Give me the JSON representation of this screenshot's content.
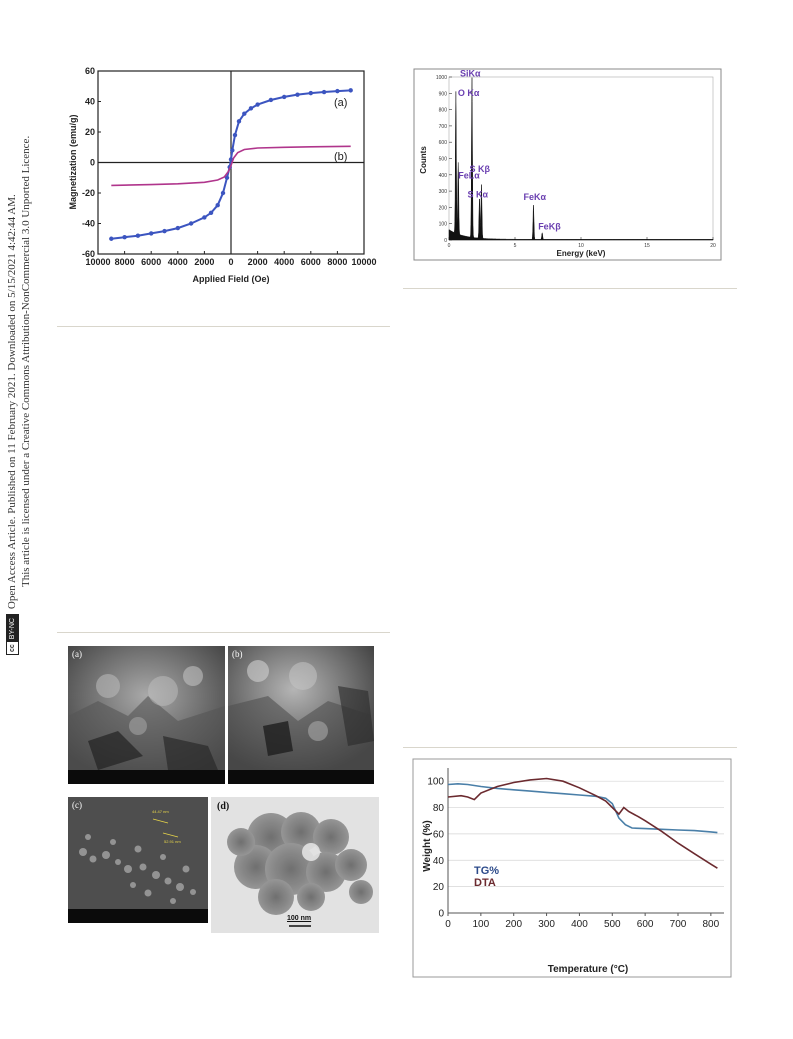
{
  "sidebar": {
    "line1": "Open Access Article. Published on 11 February 2021. Downloaded on 5/15/2021 4:42:44 AM.",
    "line2": "This article is licensed under a Creative Commons Attribution-NonCommercial 3.0 Unported Licence.",
    "cc_badge": "cc",
    "cc_terms": "BY-NC"
  },
  "photos": {
    "a": "(a)",
    "b": "(b)",
    "c": "(c)",
    "d": "(d)",
    "scale_bar": "100 nm",
    "c_annotation_1": "44.47 nm",
    "c_annotation_2": "52.91 nm"
  },
  "colors": {
    "vsm_a": "#3c55c0",
    "vsm_b": "#b0358c",
    "edx_label": "#6a3fb0",
    "tg": "#4a7fa8",
    "dta": "#6b2a2f"
  },
  "chart_data": [
    {
      "type": "line",
      "title": "",
      "xlabel": "Applied Field (Oe)",
      "ylabel": "Magnetization (emu/g)",
      "xlim": [
        -10000,
        10000
      ],
      "ylim": [
        -60,
        60
      ],
      "xticks": [
        -10000,
        -8000,
        -6000,
        -4000,
        -2000,
        0,
        2000,
        4000,
        6000,
        8000,
        10000
      ],
      "xtick_labels": [
        "10000",
        "8000",
        "6000",
        "4000",
        "2000",
        "0",
        "2000",
        "4000",
        "6000",
        "8000",
        "10000"
      ],
      "yticks": [
        -60,
        -40,
        -20,
        0,
        20,
        40,
        60
      ],
      "series": [
        {
          "name": "(a)",
          "x": [
            -9000,
            -8000,
            -7000,
            -6000,
            -5000,
            -4000,
            -3000,
            -2000,
            -1500,
            -1000,
            -600,
            -300,
            -100,
            0,
            100,
            300,
            600,
            1000,
            1500,
            2000,
            3000,
            4000,
            5000,
            6000,
            7000,
            8000,
            9000
          ],
          "y": [
            -50,
            -49,
            -48,
            -46.5,
            -45,
            -43,
            -40,
            -36,
            -33,
            -28,
            -20,
            -10,
            -3,
            2,
            8,
            18,
            27,
            32,
            35.5,
            38,
            41,
            43,
            44.5,
            45.5,
            46.2,
            46.8,
            47.3
          ]
        },
        {
          "name": "(b)",
          "x": [
            -9000,
            -6000,
            -4000,
            -2000,
            -1000,
            -500,
            -200,
            0,
            200,
            500,
            1000,
            2000,
            4000,
            6000,
            9000
          ],
          "y": [
            -15,
            -14.5,
            -14,
            -13,
            -11.5,
            -9.5,
            -6,
            -2,
            3,
            6.5,
            8.5,
            9.5,
            10,
            10.3,
            10.6
          ]
        }
      ]
    },
    {
      "type": "bar",
      "title": "",
      "xlabel": "Energy (keV)",
      "ylabel": "Counts",
      "xlim": [
        0,
        20
      ],
      "ylim": [
        0,
        1000
      ],
      "xticks": [
        0,
        5,
        10,
        15,
        20
      ],
      "yticks": [
        0,
        100,
        200,
        300,
        400,
        500,
        600,
        700,
        800,
        900,
        1000
      ],
      "peaks": [
        {
          "label": "O Kα",
          "x": 0.52,
          "y": 870
        },
        {
          "label": "FeLα",
          "x": 0.7,
          "y": 440
        },
        {
          "label": "SiKα",
          "x": 1.74,
          "y": 980
        },
        {
          "label": "S Kβ",
          "x": 2.46,
          "y": 330
        },
        {
          "label": "S Kα",
          "x": 2.31,
          "y": 250
        },
        {
          "label": "FeKα",
          "x": 6.4,
          "y": 210
        },
        {
          "label": "FeKβ",
          "x": 7.06,
          "y": 40
        }
      ]
    },
    {
      "type": "line",
      "title": "",
      "xlabel": "Temperature (°C)",
      "ylabel": "Weight (%)",
      "xlim": [
        0,
        840
      ],
      "ylim": [
        0,
        110
      ],
      "xticks": [
        0,
        100,
        200,
        300,
        400,
        500,
        600,
        700,
        800
      ],
      "yticks": [
        0,
        20,
        40,
        60,
        80,
        100
      ],
      "legend_position": "bottom-left",
      "series": [
        {
          "name": "TG%",
          "x": [
            0,
            30,
            60,
            100,
            150,
            200,
            250,
            300,
            350,
            400,
            450,
            480,
            500,
            520,
            540,
            560,
            600,
            650,
            700,
            750,
            800,
            820
          ],
          "y": [
            97.5,
            98,
            97.5,
            96,
            94.5,
            93.5,
            92.5,
            91.5,
            90.5,
            89.5,
            88.5,
            87,
            83,
            72,
            67,
            64.5,
            64,
            63.5,
            63,
            62.5,
            61.5,
            61
          ]
        },
        {
          "name": "DTA",
          "x": [
            0,
            40,
            60,
            80,
            100,
            150,
            200,
            250,
            300,
            350,
            400,
            450,
            480,
            500,
            520,
            535,
            550,
            580,
            600,
            650,
            700,
            750,
            800,
            820
          ],
          "y": [
            88,
            89,
            88,
            86,
            91,
            96,
            99,
            101,
            102,
            100,
            95,
            89,
            85,
            80,
            75,
            80,
            77,
            73,
            70,
            62,
            53,
            45,
            37,
            34
          ]
        }
      ]
    }
  ]
}
